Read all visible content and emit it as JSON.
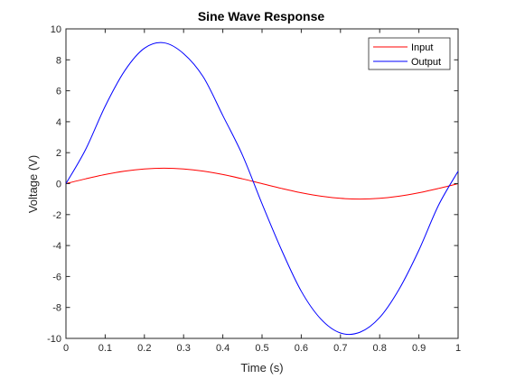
{
  "chart_data": {
    "type": "line",
    "title": "Sine Wave Response",
    "xlabel": "Time (s)",
    "ylabel": "Voltage (V)",
    "xlim": [
      0,
      1
    ],
    "ylim": [
      -10,
      10
    ],
    "xticks": [
      0,
      0.1,
      0.2,
      0.3,
      0.4,
      0.5,
      0.6,
      0.7,
      0.8,
      0.9,
      1
    ],
    "xtick_labels": [
      "0",
      "0.1",
      "0.2",
      "0.3",
      "0.4",
      "0.5",
      "0.6",
      "0.7",
      "0.8",
      "0.9",
      "1"
    ],
    "yticks": [
      -10,
      -8,
      -6,
      -4,
      -2,
      0,
      2,
      4,
      6,
      8,
      10
    ],
    "ytick_labels": [
      "-10",
      "-8",
      "-6",
      "-4",
      "-2",
      "0",
      "2",
      "4",
      "6",
      "8",
      "10"
    ],
    "grid": false,
    "legend_position": "top-right",
    "x": [
      0,
      0.05,
      0.1,
      0.15,
      0.2,
      0.25,
      0.3,
      0.35,
      0.4,
      0.45,
      0.5,
      0.55,
      0.6,
      0.65,
      0.7,
      0.75,
      0.8,
      0.85,
      0.9,
      0.95,
      1
    ],
    "series": [
      {
        "name": "Input",
        "color": "#ff0000",
        "values": [
          0,
          0.31,
          0.59,
          0.81,
          0.95,
          1.0,
          0.95,
          0.81,
          0.59,
          0.31,
          0,
          -0.31,
          -0.59,
          -0.81,
          -0.95,
          -1.0,
          -0.95,
          -0.81,
          -0.59,
          -0.31,
          0
        ]
      },
      {
        "name": "Output",
        "color": "#0000ff",
        "values": [
          0,
          2.2,
          5.0,
          7.3,
          8.75,
          9.1,
          8.4,
          6.9,
          4.4,
          1.85,
          -1.3,
          -4.3,
          -6.95,
          -8.75,
          -9.65,
          -9.6,
          -8.65,
          -6.8,
          -4.3,
          -1.4,
          0.8
        ]
      }
    ]
  }
}
